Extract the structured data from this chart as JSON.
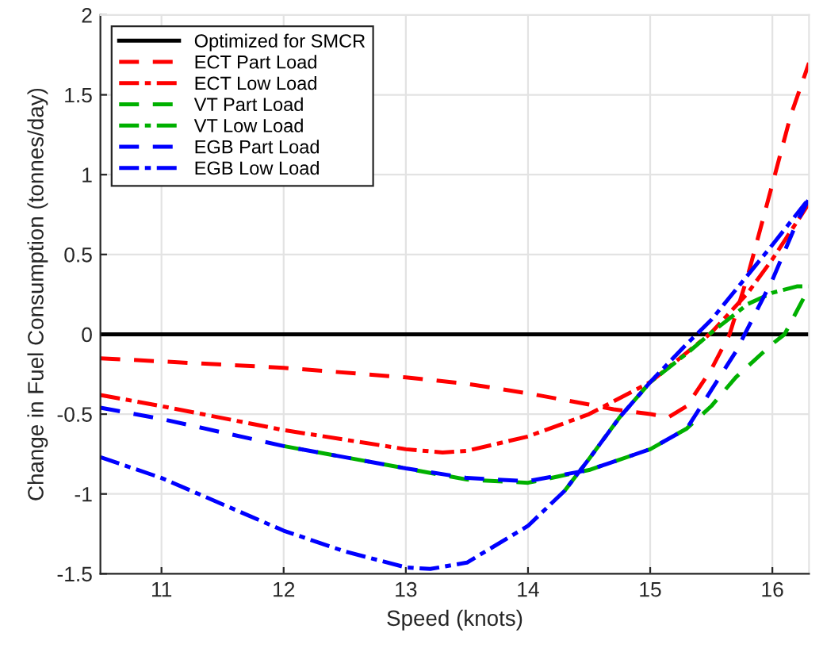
{
  "chart_data": {
    "type": "line",
    "xlabel": "Speed (knots)",
    "ylabel": "Change in Fuel Consumption (tonnes/day)",
    "xlim": [
      10.5,
      16.3
    ],
    "xticks": [
      11,
      12,
      13,
      14,
      15,
      16
    ],
    "ylim": [
      -1.5,
      2
    ],
    "yticks": [
      -1.5,
      -1,
      -0.5,
      0,
      0.5,
      1,
      1.5,
      2
    ],
    "grid": true,
    "legend": "top left",
    "marker": "none",
    "series": [
      {
        "name": "Optimized for SMCR",
        "color": "#000000",
        "line_style": "solid",
        "x": [
          10.5,
          16.3
        ],
        "values": [
          0,
          0
        ]
      },
      {
        "name": "ECT Part Load",
        "color": "#ff0000",
        "line_style": "dashed",
        "x": [
          10.5,
          11,
          12,
          13,
          13.5,
          14,
          14.5,
          14.7,
          15,
          15.15,
          15.3,
          15.5,
          15.65,
          15.8,
          16,
          16.15,
          16.3
        ],
        "values": [
          -0.15,
          -0.17,
          -0.21,
          -0.27,
          -0.31,
          -0.37,
          -0.44,
          -0.47,
          -0.5,
          -0.52,
          -0.45,
          -0.22,
          0,
          0.37,
          0.94,
          1.37,
          1.7
        ]
      },
      {
        "name": "ECT Low Load",
        "color": "#ff0000",
        "line_style": "dashdot",
        "x": [
          10.5,
          11,
          12,
          13,
          13.3,
          13.5,
          14,
          14.5,
          15,
          15.5,
          15.8,
          16,
          16.3
        ],
        "values": [
          -0.38,
          -0.45,
          -0.6,
          -0.72,
          -0.74,
          -0.73,
          -0.64,
          -0.5,
          -0.3,
          0.01,
          0.26,
          0.47,
          0.82
        ]
      },
      {
        "name": "VT Part Load",
        "color": "#00b000",
        "line_style": "dashed",
        "x": [
          12,
          13,
          13.5,
          14,
          14.5,
          15,
          15.3,
          15.5,
          15.7,
          16,
          16.1,
          16.3
        ],
        "values": [
          -0.7,
          -0.84,
          -0.91,
          -0.93,
          -0.85,
          -0.72,
          -0.59,
          -0.45,
          -0.27,
          -0.06,
          0,
          0.29
        ]
      },
      {
        "name": "VT Low Load",
        "color": "#00b000",
        "line_style": "dashdot",
        "x": [
          14.3,
          14.5,
          14.75,
          15,
          15.3,
          15.5,
          15.8,
          16,
          16.2,
          16.3
        ],
        "values": [
          -0.98,
          -0.78,
          -0.52,
          -0.3,
          -0.12,
          0.01,
          0.19,
          0.26,
          0.3,
          0.3
        ]
      },
      {
        "name": "EGB Part Load",
        "color": "#0000ff",
        "line_style": "dashed",
        "x": [
          10.5,
          11,
          12,
          13,
          13.5,
          14,
          14.5,
          15,
          15.3,
          15.5,
          15.7,
          16,
          16.2,
          16.3
        ],
        "values": [
          -0.46,
          -0.53,
          -0.7,
          -0.84,
          -0.9,
          -0.92,
          -0.85,
          -0.72,
          -0.59,
          -0.35,
          -0.11,
          0.34,
          0.7,
          0.85
        ]
      },
      {
        "name": "EGB Low Load",
        "color": "#0000ff",
        "line_style": "dashdot",
        "x": [
          10.5,
          11,
          12,
          12.5,
          13,
          13.2,
          13.5,
          14,
          14.3,
          14.5,
          14.75,
          15,
          15.3,
          15.5,
          16,
          16.3
        ],
        "values": [
          -0.77,
          -0.9,
          -1.23,
          -1.36,
          -1.46,
          -1.47,
          -1.43,
          -1.2,
          -0.98,
          -0.78,
          -0.52,
          -0.3,
          -0.06,
          0.09,
          0.56,
          0.85
        ]
      }
    ]
  }
}
